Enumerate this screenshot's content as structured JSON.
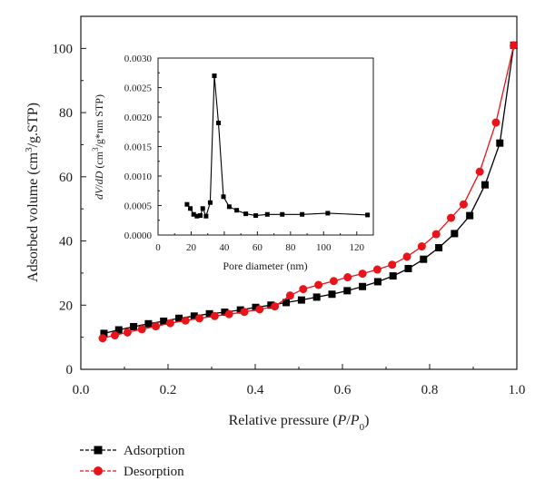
{
  "chart_data": [
    {
      "type": "line",
      "xlabel": "Relative pressure (P/P0)",
      "ylabel": "Adsorbed volume (cm3/g.STP)",
      "xlim": [
        0.0,
        1.0
      ],
      "ylim": [
        0,
        110
      ],
      "x_ticks": [
        "0.0",
        "0.2",
        "0.4",
        "0.6",
        "0.8",
        "1.0"
      ],
      "y_ticks": [
        "0",
        "20",
        "40",
        "60",
        "80",
        "100"
      ],
      "grid": false,
      "legend_position": "bottom-left",
      "series": [
        {
          "name": "Adsorption",
          "color": "#000000",
          "marker": "square",
          "points": [
            [
              0.053,
              11.2
            ],
            [
              0.087,
              12.3
            ],
            [
              0.121,
              13.3
            ],
            [
              0.155,
              14.2
            ],
            [
              0.19,
              15.0
            ],
            [
              0.225,
              15.9
            ],
            [
              0.26,
              16.6
            ],
            [
              0.295,
              17.3
            ],
            [
              0.33,
              17.8
            ],
            [
              0.366,
              18.5
            ],
            [
              0.401,
              19.3
            ],
            [
              0.436,
              20.0
            ],
            [
              0.471,
              20.8
            ],
            [
              0.506,
              21.6
            ],
            [
              0.541,
              22.5
            ],
            [
              0.576,
              23.4
            ],
            [
              0.611,
              24.5
            ],
            [
              0.646,
              25.8
            ],
            [
              0.681,
              27.3
            ],
            [
              0.716,
              29.1
            ],
            [
              0.751,
              31.4
            ],
            [
              0.786,
              34.3
            ],
            [
              0.821,
              37.9
            ],
            [
              0.857,
              42.3
            ],
            [
              0.892,
              47.9
            ],
            [
              0.927,
              57.5
            ],
            [
              0.961,
              70.5
            ],
            [
              0.993,
              101.0
            ]
          ]
        },
        {
          "name": "Desorption",
          "color": "#e8141a",
          "marker": "circle",
          "points": [
            [
              0.05,
              9.7
            ],
            [
              0.078,
              10.6
            ],
            [
              0.107,
              11.5
            ],
            [
              0.14,
              12.5
            ],
            [
              0.172,
              13.4
            ],
            [
              0.205,
              14.4
            ],
            [
              0.24,
              15.2
            ],
            [
              0.272,
              15.9
            ],
            [
              0.307,
              16.6
            ],
            [
              0.34,
              17.2
            ],
            [
              0.375,
              17.9
            ],
            [
              0.41,
              18.7
            ],
            [
              0.445,
              19.6
            ],
            [
              0.48,
              23.0
            ],
            [
              0.51,
              25.0
            ],
            [
              0.545,
              26.3
            ],
            [
              0.58,
              27.5
            ],
            [
              0.612,
              28.7
            ],
            [
              0.646,
              29.8
            ],
            [
              0.68,
              31.1
            ],
            [
              0.714,
              32.6
            ],
            [
              0.748,
              35.1
            ],
            [
              0.782,
              38.3
            ],
            [
              0.815,
              42.1
            ],
            [
              0.849,
              47.2
            ],
            [
              0.878,
              51.4
            ],
            [
              0.915,
              61.6
            ],
            [
              0.952,
              76.9
            ],
            [
              0.993,
              101.0
            ]
          ]
        }
      ]
    },
    {
      "type": "line",
      "xlabel": "Pore diameter (nm)",
      "ylabel": "dV/dD (cm3/g*nm STP)",
      "xlim": [
        0,
        130
      ],
      "ylim": [
        0,
        0.003
      ],
      "x_ticks": [
        "0",
        "20",
        "40",
        "60",
        "80",
        "100",
        "120"
      ],
      "y_ticks": [
        "0.0000",
        "0.0005",
        "0.0010",
        "0.0015",
        "0.0020",
        "0.0025",
        "0.0030"
      ],
      "grid": false,
      "series": [
        {
          "color": "#000000",
          "marker": "square",
          "points": [
            [
              17.5,
              0.00052
            ],
            [
              19.5,
              0.00045
            ],
            [
              21.5,
              0.00035
            ],
            [
              23.5,
              0.00032
            ],
            [
              25.5,
              0.00033
            ],
            [
              27.0,
              0.00045
            ],
            [
              29.0,
              0.00032
            ],
            [
              31.5,
              0.00055
            ],
            [
              34.0,
              0.0027
            ],
            [
              36.5,
              0.0019
            ],
            [
              39.5,
              0.00065
            ],
            [
              43.0,
              0.00048
            ],
            [
              47.5,
              0.00042
            ],
            [
              53.0,
              0.00036
            ],
            [
              59.0,
              0.00033
            ],
            [
              66.0,
              0.00035
            ],
            [
              75.0,
              0.00035
            ],
            [
              87.0,
              0.00035
            ],
            [
              102.5,
              0.00037
            ],
            [
              126.5,
              0.00034
            ]
          ]
        }
      ]
    }
  ]
}
